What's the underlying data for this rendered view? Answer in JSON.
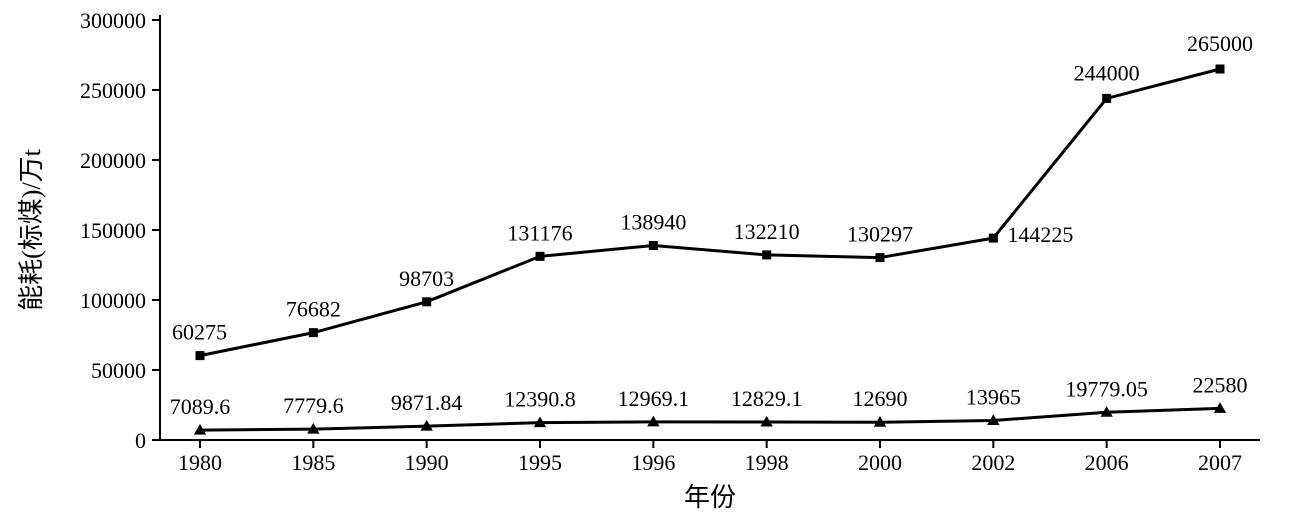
{
  "chart": {
    "type": "line",
    "background_color": "#ffffff",
    "line_color": "#000000",
    "axis_color": "#000000",
    "label_fontsize": 22,
    "axis_title_fontsize": 26,
    "line_width": 3,
    "marker_size": 9,
    "x_axis": {
      "title": "年份",
      "categories": [
        "1980",
        "1985",
        "1990",
        "1995",
        "1996",
        "1998",
        "2000",
        "2002",
        "2006",
        "2007"
      ]
    },
    "y_axis": {
      "title": "能耗(标煤)/万t",
      "min": 0,
      "max": 300000,
      "tick_step": 50000,
      "ticks": [
        0,
        50000,
        100000,
        150000,
        200000,
        250000,
        300000
      ]
    },
    "series": [
      {
        "name": "series-upper",
        "marker": "square",
        "values": [
          60275,
          76682,
          98703,
          131176,
          138940,
          132210,
          130297,
          144225,
          244000,
          265000
        ],
        "labels": [
          "60275",
          "76682",
          "98703",
          "131176",
          "138940",
          "132210",
          "130297",
          "144225",
          "244000",
          "265000"
        ]
      },
      {
        "name": "series-lower",
        "marker": "triangle",
        "values": [
          7089.6,
          7779.6,
          9871.84,
          12390.8,
          12969.1,
          12829.1,
          12690,
          13965,
          19779.05,
          22580
        ],
        "labels": [
          "7089.6",
          "7779.6",
          "9871.84",
          "12390.8",
          "12969.1",
          "12829.1",
          "12690",
          "13965",
          "19779.05",
          "22580"
        ]
      }
    ]
  }
}
